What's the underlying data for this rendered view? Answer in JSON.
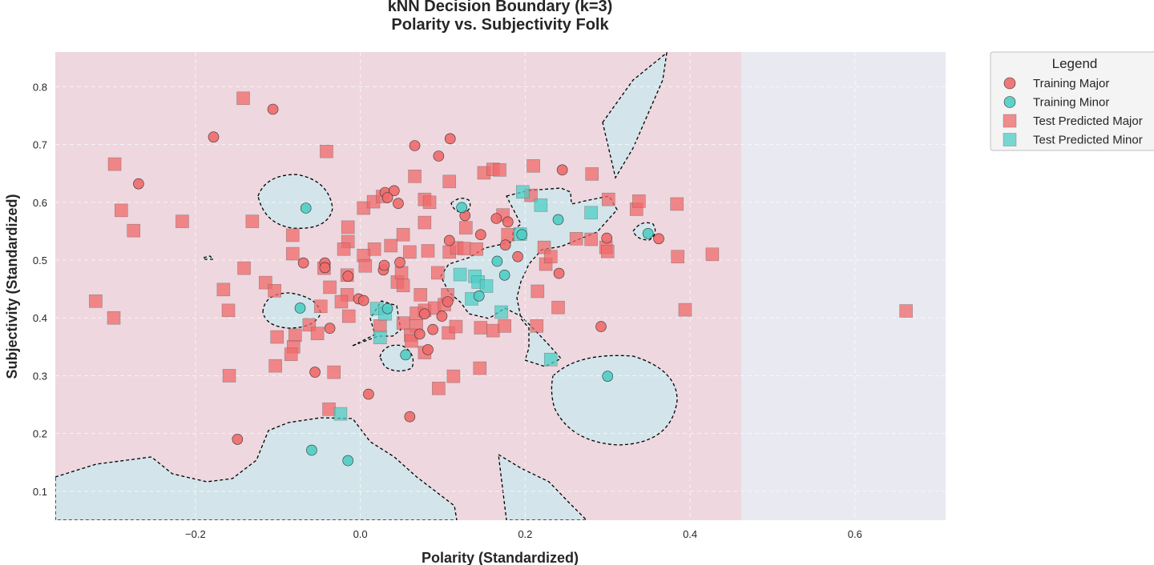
{
  "chart_data": {
    "type": "scatter",
    "title_lines": [
      "kNN Decision Boundary (k=3)",
      "Polarity vs. Subjectivity Folk"
    ],
    "xlabel": "Polarity (Standardized)",
    "ylabel": "Subjectivity (Standardized)",
    "xlim": [
      -0.37,
      0.71
    ],
    "ylim": [
      0.05,
      0.86
    ],
    "x_ticks": [
      -0.2,
      0.0,
      0.2,
      0.4,
      0.6
    ],
    "x_tick_labels": [
      "−0.2",
      "0.0",
      "0.2",
      "0.4",
      "0.6"
    ],
    "y_ticks": [
      0.1,
      0.2,
      0.3,
      0.4,
      0.5,
      0.6,
      0.7,
      0.8
    ],
    "y_tick_labels": [
      "0.1",
      "0.2",
      "0.3",
      "0.4",
      "0.5",
      "0.6",
      "0.7",
      "0.8"
    ],
    "grid": true,
    "legend_position": "outside-top-right",
    "legend_title": "Legend",
    "colors": {
      "major": "#f06a6a",
      "minor": "#4ecdc4",
      "region_major": "#eed7de",
      "region_minor": "#d3e5ea",
      "region_outside": "#e9e9f1",
      "grid": "#ffffff",
      "boundary": "#000000"
    },
    "decision_regions": {
      "predicted_minor_region_max_x": 0.463,
      "boundary_style": "dashed"
    },
    "series": [
      {
        "name": "Training Major",
        "marker": "circle",
        "color": "#f06a6a",
        "points": [
          [
            -0.106,
            0.761
          ],
          [
            -0.178,
            0.713
          ],
          [
            -0.269,
            0.632
          ],
          [
            0.066,
            0.698
          ],
          [
            0.109,
            0.71
          ],
          [
            0.095,
            0.68
          ],
          [
            0.03,
            0.617
          ],
          [
            0.041,
            0.62
          ],
          [
            0.046,
            0.598
          ],
          [
            0.033,
            0.608
          ],
          [
            0.127,
            0.577
          ],
          [
            0.165,
            0.572
          ],
          [
            0.179,
            0.566
          ],
          [
            0.245,
            0.656
          ],
          [
            0.108,
            0.534
          ],
          [
            0.146,
            0.544
          ],
          [
            0.176,
            0.526
          ],
          [
            0.299,
            0.538
          ],
          [
            0.362,
            0.537
          ],
          [
            -0.069,
            0.495
          ],
          [
            -0.043,
            0.495
          ],
          [
            -0.043,
            0.487
          ],
          [
            -0.015,
            0.472
          ],
          [
            0.028,
            0.483
          ],
          [
            0.029,
            0.491
          ],
          [
            0.048,
            0.496
          ],
          [
            0.191,
            0.506
          ],
          [
            0.241,
            0.477
          ],
          [
            -0.002,
            0.433
          ],
          [
            0.004,
            0.43
          ],
          [
            0.106,
            0.428
          ],
          [
            -0.037,
            0.382
          ],
          [
            0.088,
            0.38
          ],
          [
            0.099,
            0.403
          ],
          [
            0.078,
            0.407
          ],
          [
            0.072,
            0.372
          ],
          [
            0.082,
            0.345
          ],
          [
            0.292,
            0.385
          ],
          [
            -0.055,
            0.306
          ],
          [
            0.01,
            0.268
          ],
          [
            0.06,
            0.229
          ],
          [
            -0.149,
            0.19
          ]
        ]
      },
      {
        "name": "Training Minor",
        "marker": "circle",
        "color": "#4ecdc4",
        "points": [
          [
            -0.066,
            0.59
          ],
          [
            0.123,
            0.591
          ],
          [
            0.24,
            0.57
          ],
          [
            0.196,
            0.544
          ],
          [
            0.349,
            0.546
          ],
          [
            0.166,
            0.498
          ],
          [
            0.175,
            0.474
          ],
          [
            0.144,
            0.438
          ],
          [
            -0.073,
            0.417
          ],
          [
            0.033,
            0.416
          ],
          [
            0.055,
            0.336
          ],
          [
            0.3,
            0.299
          ],
          [
            -0.059,
            0.171
          ],
          [
            -0.015,
            0.153
          ]
        ]
      },
      {
        "name": "Test Predicted Major",
        "marker": "square",
        "color": "#f06a6a",
        "points": [
          [
            -0.142,
            0.78
          ],
          [
            -0.298,
            0.666
          ],
          [
            -0.29,
            0.586
          ],
          [
            -0.275,
            0.551
          ],
          [
            -0.216,
            0.567
          ],
          [
            -0.131,
            0.567
          ],
          [
            -0.041,
            0.688
          ],
          [
            -0.082,
            0.543
          ],
          [
            -0.082,
            0.511
          ],
          [
            -0.015,
            0.557
          ],
          [
            -0.015,
            0.532
          ],
          [
            -0.02,
            0.519
          ],
          [
            -0.141,
            0.486
          ],
          [
            -0.115,
            0.461
          ],
          [
            -0.104,
            0.447
          ],
          [
            -0.166,
            0.449
          ],
          [
            -0.16,
            0.413
          ],
          [
            -0.321,
            0.429
          ],
          [
            -0.299,
            0.4
          ],
          [
            -0.044,
            0.486
          ],
          [
            -0.037,
            0.453
          ],
          [
            -0.016,
            0.474
          ],
          [
            -0.016,
            0.44
          ],
          [
            -0.023,
            0.428
          ],
          [
            -0.014,
            0.403
          ],
          [
            -0.048,
            0.42
          ],
          [
            -0.062,
            0.388
          ],
          [
            -0.052,
            0.373
          ],
          [
            -0.079,
            0.37
          ],
          [
            -0.101,
            0.367
          ],
          [
            -0.081,
            0.35
          ],
          [
            -0.084,
            0.337
          ],
          [
            -0.103,
            0.317
          ],
          [
            -0.159,
            0.3
          ],
          [
            -0.032,
            0.306
          ],
          [
            -0.038,
            0.242
          ],
          [
            0.004,
            0.59
          ],
          [
            0.016,
            0.601
          ],
          [
            0.027,
            0.61
          ],
          [
            0.017,
            0.519
          ],
          [
            0.004,
            0.508
          ],
          [
            0.006,
            0.49
          ],
          [
            0.037,
            0.525
          ],
          [
            0.052,
            0.544
          ],
          [
            0.06,
            0.514
          ],
          [
            0.045,
            0.462
          ],
          [
            0.05,
            0.478
          ],
          [
            0.052,
            0.456
          ],
          [
            0.066,
            0.645
          ],
          [
            0.078,
            0.565
          ],
          [
            0.078,
            0.605
          ],
          [
            0.084,
            0.6
          ],
          [
            0.082,
            0.516
          ],
          [
            0.094,
            0.478
          ],
          [
            0.108,
            0.636
          ],
          [
            0.108,
            0.514
          ],
          [
            0.117,
            0.521
          ],
          [
            0.126,
            0.52
          ],
          [
            0.128,
            0.556
          ],
          [
            0.141,
            0.519
          ],
          [
            0.15,
            0.651
          ],
          [
            0.161,
            0.657
          ],
          [
            0.169,
            0.656
          ],
          [
            0.173,
            0.578
          ],
          [
            0.179,
            0.544
          ],
          [
            0.207,
            0.612
          ],
          [
            0.21,
            0.663
          ],
          [
            0.225,
            0.493
          ],
          [
            0.223,
            0.522
          ],
          [
            0.231,
            0.506
          ],
          [
            0.262,
            0.537
          ],
          [
            0.28,
            0.536
          ],
          [
            0.281,
            0.649
          ],
          [
            0.298,
            0.522
          ],
          [
            0.3,
            0.515
          ],
          [
            0.301,
            0.605
          ],
          [
            0.335,
            0.588
          ],
          [
            0.338,
            0.602
          ],
          [
            0.384,
            0.597
          ],
          [
            0.385,
            0.506
          ],
          [
            0.427,
            0.51
          ],
          [
            0.215,
            0.446
          ],
          [
            0.24,
            0.418
          ],
          [
            0.214,
            0.386
          ],
          [
            0.394,
            0.414
          ],
          [
            0.662,
            0.412
          ],
          [
            0.073,
            0.44
          ],
          [
            0.068,
            0.408
          ],
          [
            0.078,
            0.413
          ],
          [
            0.09,
            0.417
          ],
          [
            0.102,
            0.423
          ],
          [
            0.106,
            0.44
          ],
          [
            0.068,
            0.386
          ],
          [
            0.052,
            0.391
          ],
          [
            0.024,
            0.386
          ],
          [
            0.061,
            0.37
          ],
          [
            0.062,
            0.36
          ],
          [
            0.078,
            0.34
          ],
          [
            0.107,
            0.374
          ],
          [
            0.116,
            0.385
          ],
          [
            0.146,
            0.383
          ],
          [
            0.161,
            0.378
          ],
          [
            0.175,
            0.386
          ],
          [
            0.095,
            0.278
          ],
          [
            0.113,
            0.299
          ],
          [
            0.145,
            0.313
          ]
        ]
      },
      {
        "name": "Test Predicted Minor",
        "marker": "square",
        "color": "#4ecdc4",
        "points": [
          [
            0.197,
            0.618
          ],
          [
            0.219,
            0.595
          ],
          [
            0.28,
            0.582
          ],
          [
            0.194,
            0.545
          ],
          [
            0.121,
            0.475
          ],
          [
            0.139,
            0.472
          ],
          [
            0.143,
            0.462
          ],
          [
            0.153,
            0.455
          ],
          [
            0.135,
            0.433
          ],
          [
            0.171,
            0.41
          ],
          [
            0.02,
            0.416
          ],
          [
            0.03,
            0.407
          ],
          [
            0.024,
            0.366
          ],
          [
            0.231,
            0.328
          ],
          [
            -0.024,
            0.234
          ]
        ]
      }
    ]
  }
}
